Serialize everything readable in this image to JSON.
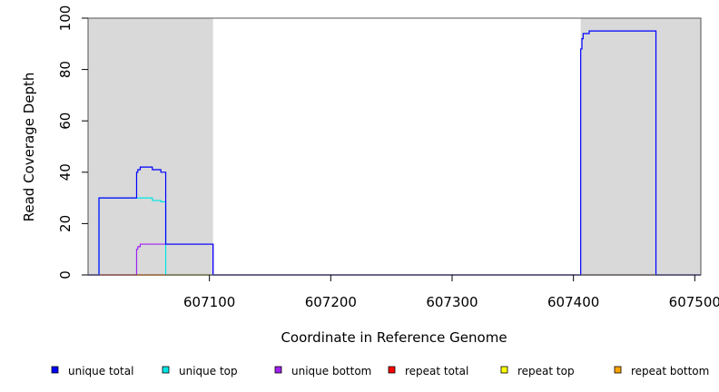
{
  "chart_data": {
    "type": "line",
    "title": "",
    "xlabel": "Coordinate in Reference Genome",
    "ylabel": "Read Coverage Depth",
    "xlim": [
      607000,
      607505
    ],
    "ylim": [
      0,
      100
    ],
    "x_ticks": [
      607100,
      607200,
      607300,
      607400,
      607500
    ],
    "y_ticks": [
      0,
      20,
      40,
      60,
      80,
      100
    ],
    "shaded_regions": [
      [
        607000,
        607103
      ],
      [
        607406,
        607505
      ]
    ],
    "shade_color": "#d9d9d9",
    "legend_position": "bottom",
    "series": [
      {
        "name": "unique total",
        "color": "#0000ff",
        "points": [
          [
            607000,
            0
          ],
          [
            607009,
            0
          ],
          [
            607009,
            30
          ],
          [
            607040,
            30
          ],
          [
            607040,
            40
          ],
          [
            607041,
            40
          ],
          [
            607041,
            41
          ],
          [
            607043,
            41
          ],
          [
            607043,
            42
          ],
          [
            607053,
            42
          ],
          [
            607053,
            41
          ],
          [
            607060,
            41
          ],
          [
            607060,
            40
          ],
          [
            607064,
            40
          ],
          [
            607064,
            12
          ],
          [
            607103,
            12
          ],
          [
            607103,
            0
          ],
          [
            607406,
            0
          ],
          [
            607406,
            88
          ],
          [
            607407,
            88
          ],
          [
            607407,
            92
          ],
          [
            607408,
            92
          ],
          [
            607408,
            94
          ],
          [
            607413,
            94
          ],
          [
            607413,
            95
          ],
          [
            607468,
            95
          ],
          [
            607468,
            0
          ],
          [
            607505,
            0
          ]
        ]
      },
      {
        "name": "unique top",
        "color": "#00e5e5",
        "points": [
          [
            607000,
            0
          ],
          [
            607009,
            0
          ],
          [
            607009,
            30
          ],
          [
            607040,
            30
          ],
          [
            607053,
            30
          ],
          [
            607053,
            29
          ],
          [
            607060,
            29
          ],
          [
            607060,
            28.5
          ],
          [
            607064,
            28.5
          ],
          [
            607064,
            0
          ],
          [
            607505,
            0
          ]
        ]
      },
      {
        "name": "unique bottom",
        "color": "#a020f0",
        "points": [
          [
            607000,
            0
          ],
          [
            607040,
            0
          ],
          [
            607040,
            10
          ],
          [
            607041,
            10
          ],
          [
            607041,
            11
          ],
          [
            607043,
            11
          ],
          [
            607043,
            12
          ],
          [
            607103,
            12
          ],
          [
            607103,
            0
          ],
          [
            607505,
            0
          ]
        ]
      },
      {
        "name": "repeat total",
        "color": "#ff0000",
        "points": [
          [
            607000,
            0
          ],
          [
            607505,
            0
          ]
        ]
      },
      {
        "name": "repeat top",
        "color": "#ffff00",
        "points": [
          [
            607000,
            0
          ],
          [
            607505,
            0
          ]
        ]
      },
      {
        "name": "repeat bottom",
        "color": "#ffa500",
        "points": [
          [
            607000,
            0
          ],
          [
            607505,
            0
          ]
        ]
      }
    ]
  }
}
